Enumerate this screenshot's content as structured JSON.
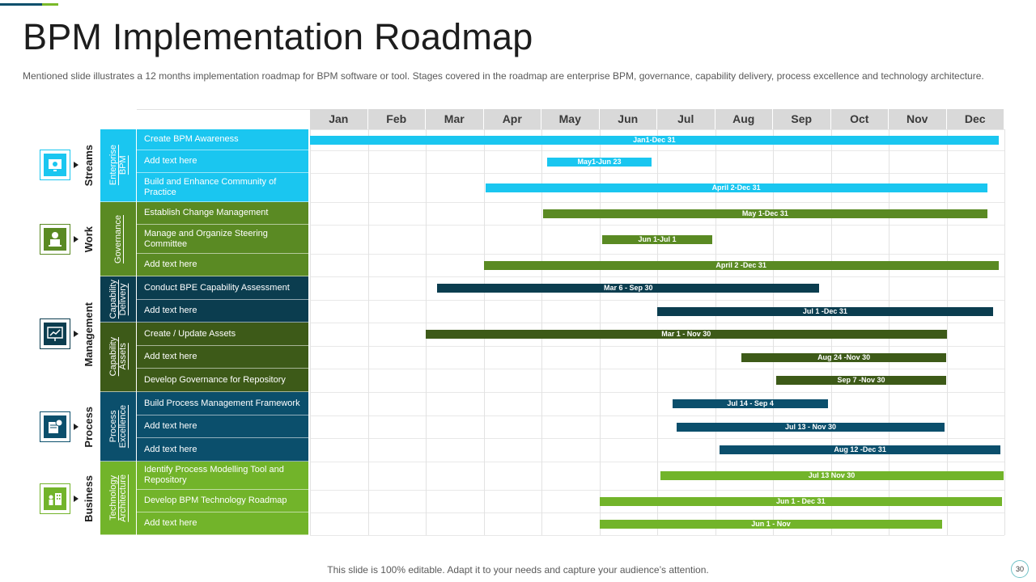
{
  "slide": {
    "title": "BPM Implementation Roadmap",
    "subtitle": "Mentioned slide illustrates a 12 months implementation roadmap for BPM software or tool. Stages covered in the roadmap are enterprise BPM, governance, capability delivery, process excellence and technology architecture.",
    "footer": "This slide is 100% editable. Adapt it to your needs and capture your audience’s attention.",
    "page_number": "30"
  },
  "months": [
    "Jan",
    "Feb",
    "Mar",
    "Apr",
    "May",
    "Jun",
    "Jul",
    "Aug",
    "Sep",
    "Oct",
    "Nov",
    "Dec"
  ],
  "streams": [
    {
      "label": "Streams",
      "icon": "gear-monitor-icon",
      "color": "#1ac6f0"
    },
    {
      "label": "Work",
      "icon": "worker-laptop-icon",
      "color": "#5a8a23"
    },
    {
      "label": "Management",
      "icon": "presentation-board-icon",
      "color": "#0b3d4f"
    },
    {
      "label": "Process",
      "icon": "document-gear-icon",
      "color": "#0b4f6c"
    },
    {
      "label": "Business",
      "icon": "team-building-icon",
      "color": "#72b42a"
    }
  ],
  "stages": [
    {
      "label": "Enterprise\nBPM",
      "color": "#1ac6f0"
    },
    {
      "label": "Governance",
      "color": "#5a8a23"
    },
    {
      "label": "Capability\nDelivery",
      "color": "#0b3d4f"
    },
    {
      "label": "Capability\nAssets",
      "color": "#3d5a18"
    },
    {
      "label": "Process\nExcellence",
      "color": "#0b4f6c"
    },
    {
      "label": "Technology\nArchitecture",
      "color": "#72b42a"
    }
  ],
  "tasks": [
    {
      "name": "Create BPM  Awareness",
      "stage": 0,
      "bar": "Jan1-Dec 31",
      "start": 1.0,
      "end": 12.9
    },
    {
      "name": "Add text here",
      "stage": 0,
      "bar": "May1-Jun 23",
      "start": 5.1,
      "end": 6.9
    },
    {
      "name": "Build and Enhance Community of Practice",
      "stage": 0,
      "bar": "April 2-Dec 31",
      "start": 4.03,
      "end": 12.7
    },
    {
      "name": "Establish Change Management",
      "stage": 1,
      "bar": "May 1-Dec 31",
      "start": 5.03,
      "end": 12.7
    },
    {
      "name": "Manage and Organize Steering Committee",
      "stage": 1,
      "bar": "Jun 1-Jul 1",
      "start": 6.05,
      "end": 7.95
    },
    {
      "name": "Add text here",
      "stage": 1,
      "bar": "April 2 -Dec 31",
      "start": 4.0,
      "end": 12.9
    },
    {
      "name": "Conduct BPE Capability Assessment",
      "stage": 2,
      "bar": "Mar 6 - Sep 30",
      "start": 3.2,
      "end": 9.8
    },
    {
      "name": "Add text here",
      "stage": 2,
      "bar": "Jul 1 -Dec 31",
      "start": 7.0,
      "end": 12.8
    },
    {
      "name": "Create / Update Assets",
      "stage": 3,
      "bar": "Mar 1 - Nov 30",
      "start": 3.0,
      "end": 12.0
    },
    {
      "name": "Add text here",
      "stage": 3,
      "bar": "Aug  24 -Nov 30",
      "start": 8.45,
      "end": 12.0
    },
    {
      "name": "Develop Governance for Repository",
      "stage": 3,
      "bar": "Sep 7 -Nov 30",
      "start": 9.05,
      "end": 12.0
    },
    {
      "name": "Build Process Management Framework",
      "stage": 4,
      "bar": "Jul 14 - Sep 4",
      "start": 7.27,
      "end": 9.95
    },
    {
      "name": "Add text here",
      "stage": 4,
      "bar": "Jul 13 - Nov 30",
      "start": 7.33,
      "end": 11.97
    },
    {
      "name": "Add text here",
      "stage": 4,
      "bar": "Aug  12 -Dec 31",
      "start": 8.08,
      "end": 12.93
    },
    {
      "name": "Identify Process Modelling Tool and Repository",
      "stage": 5,
      "bar": "Jul 13 Nov 30",
      "start": 7.05,
      "end": 12.98
    },
    {
      "name": "Develop BPM Technology Roadmap",
      "stage": 5,
      "bar": "Jun 1 - Dec 31",
      "start": 6.0,
      "end": 12.96
    },
    {
      "name": "Add text here",
      "stage": 5,
      "bar": "Jun 1 - Nov",
      "start": 6.0,
      "end": 11.93
    }
  ]
}
